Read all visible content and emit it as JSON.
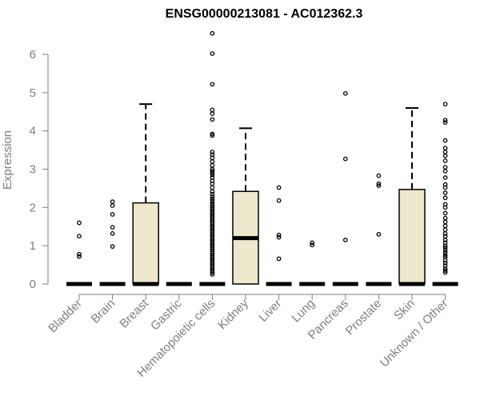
{
  "chart_data": {
    "type": "box",
    "title": "ENSG00000213081 - AC012362.3",
    "ylabel": "Expression",
    "xlabel": "",
    "ylim": [
      0,
      6.6
    ],
    "yticks": [
      0,
      1,
      2,
      3,
      4,
      5,
      6
    ],
    "grid": false,
    "box_fill": "#ede7cc",
    "categories": [
      "Bladder",
      "Brain",
      "Breast",
      "Gastric",
      "Hematopoietic cells",
      "Kidney",
      "Liver",
      "Lung",
      "Pancreas",
      "Prostate",
      "Skin",
      "Unknown / Other"
    ],
    "boxes": [
      {
        "category": "Bladder",
        "q1": 0,
        "median": 0,
        "q3": 0,
        "whisker_low": 0,
        "whisker_high": 0,
        "outliers": [
          1.6,
          1.25,
          0.78,
          0.72
        ]
      },
      {
        "category": "Brain",
        "q1": 0,
        "median": 0,
        "q3": 0,
        "whisker_low": 0,
        "whisker_high": 0,
        "outliers": [
          2.15,
          2.05,
          1.82,
          1.48,
          1.32,
          0.98
        ]
      },
      {
        "category": "Breast",
        "q1": 0,
        "median": 0,
        "q3": 2.12,
        "whisker_low": 0,
        "whisker_high": 4.7,
        "outliers": []
      },
      {
        "category": "Gastric",
        "q1": 0,
        "median": 0,
        "q3": 0,
        "whisker_low": 0,
        "whisker_high": 0,
        "outliers": []
      },
      {
        "category": "Hematopoietic cells",
        "q1": 0,
        "median": 0,
        "q3": 0,
        "whisker_low": 0,
        "whisker_high": 0,
        "outliers": [
          6.55,
          6.02,
          5.22,
          4.55,
          4.45,
          4.3,
          3.92,
          3.88,
          3.45,
          3.38,
          3.3,
          3.2,
          3.1,
          3.0,
          2.95,
          2.9,
          2.85,
          2.78,
          2.7,
          2.62,
          2.52,
          2.42,
          2.35,
          2.28,
          2.22,
          2.16,
          2.1,
          2.05,
          2.0,
          1.95,
          1.9,
          1.85,
          1.8,
          1.75,
          1.7,
          1.65,
          1.6,
          1.55,
          1.5,
          1.45,
          1.4,
          1.35,
          1.3,
          1.25,
          1.2,
          1.15,
          1.1,
          1.05,
          1.0,
          0.95,
          0.9,
          0.85,
          0.8,
          0.75,
          0.7,
          0.65,
          0.6,
          0.55,
          0.5,
          0.45,
          0.4,
          0.35,
          0.3,
          0.25
        ]
      },
      {
        "category": "Kidney",
        "q1": 0,
        "median": 1.2,
        "q3": 2.42,
        "whisker_low": 0,
        "whisker_high": 4.07,
        "outliers": []
      },
      {
        "category": "Liver",
        "q1": 0,
        "median": 0,
        "q3": 0,
        "whisker_low": 0,
        "whisker_high": 0,
        "outliers": [
          2.52,
          2.18,
          1.28,
          1.22,
          0.66
        ]
      },
      {
        "category": "Lung",
        "q1": 0,
        "median": 0,
        "q3": 0,
        "whisker_low": 0,
        "whisker_high": 0,
        "outliers": [
          1.08,
          1.02
        ]
      },
      {
        "category": "Pancreas",
        "q1": 0,
        "median": 0,
        "q3": 0,
        "whisker_low": 0,
        "whisker_high": 0,
        "outliers": [
          4.98,
          3.27,
          1.15
        ]
      },
      {
        "category": "Prostate",
        "q1": 0,
        "median": 0,
        "q3": 0,
        "whisker_low": 0,
        "whisker_high": 0,
        "outliers": [
          2.83,
          2.62,
          2.57,
          1.3
        ]
      },
      {
        "category": "Skin",
        "q1": 0,
        "median": 0,
        "q3": 2.47,
        "whisker_low": 0,
        "whisker_high": 4.6,
        "outliers": []
      },
      {
        "category": "Unknown / Other",
        "q1": 0,
        "median": 0,
        "q3": 0,
        "whisker_low": 0,
        "whisker_high": 0,
        "outliers": [
          4.7,
          4.28,
          4.22,
          3.75,
          3.55,
          3.45,
          3.35,
          3.22,
          3.05,
          2.95,
          2.78,
          2.6,
          2.52,
          2.38,
          2.25,
          2.08,
          2.0,
          1.85,
          1.72,
          1.62,
          1.52,
          1.42,
          1.32,
          1.25,
          1.15,
          1.08,
          1.0,
          0.95,
          0.88,
          0.82,
          0.75,
          0.7,
          0.62,
          0.55,
          0.48,
          0.4,
          0.35,
          0.3
        ]
      }
    ]
  }
}
